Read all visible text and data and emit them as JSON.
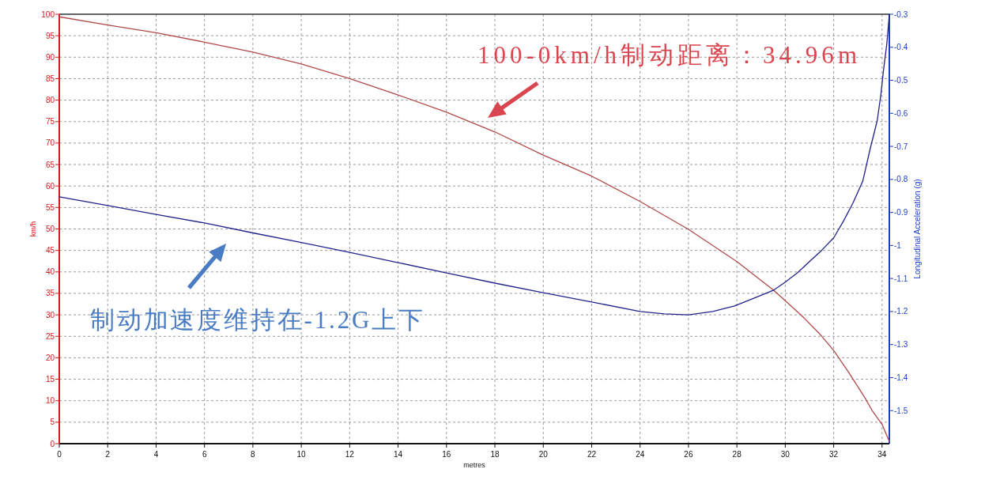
{
  "chart_data": {
    "type": "line",
    "xlabel": "metres",
    "ylabel": "km/h",
    "y2label": "Longitudinal Acceleration (g)",
    "xlim": [
      0,
      34.3
    ],
    "xticks": [
      0,
      2,
      4,
      6,
      8,
      10,
      12,
      14,
      16,
      18,
      20,
      22,
      24,
      26,
      28,
      30,
      32,
      34
    ],
    "ylim": [
      0,
      100
    ],
    "yticks": [
      0,
      5,
      10,
      15,
      20,
      25,
      30,
      35,
      40,
      45,
      50,
      55,
      60,
      65,
      70,
      75,
      80,
      85,
      90,
      95,
      100
    ],
    "y2lim": [
      -1.6,
      -0.3
    ],
    "y2ticks": [
      -0.3,
      -0.4,
      -0.5,
      -0.6,
      -0.7,
      -0.8,
      -0.9,
      -1,
      -1.1,
      -1.2,
      -1.3,
      -1.4,
      -1.5
    ],
    "grid": true,
    "series": [
      {
        "color": "#b04a48",
        "x": [
          0,
          2,
          4,
          6,
          8,
          10,
          12,
          14,
          16,
          18,
          20,
          22,
          24,
          26,
          28,
          29.5,
          30,
          30.7,
          31.4,
          32,
          32.6,
          33.3,
          33.6,
          34,
          34.3
        ],
        "values": [
          99.4,
          97.5,
          95.7,
          93.5,
          91.2,
          88.4,
          85.0,
          81.2,
          77.2,
          72.6,
          67.2,
          62.3,
          56.4,
          49.9,
          42.4,
          35.8,
          33.3,
          29.7,
          25.7,
          21.7,
          16.8,
          10.6,
          7.6,
          4.5,
          0.5
        ]
      },
      {
        "color": "#23238c",
        "axis": "y2",
        "x": [
          0,
          2,
          4,
          6,
          8,
          10,
          12,
          14,
          16,
          18,
          20,
          22,
          24,
          25,
          26,
          27,
          27.9,
          28.6,
          29.5,
          30,
          30.5,
          31,
          31.5,
          32,
          32.4,
          32.8,
          33.2,
          33.5,
          33.8,
          33.95,
          34.05,
          34.2,
          34.3
        ],
        "values": [
          -0.853,
          -0.879,
          -0.906,
          -0.932,
          -0.962,
          -0.991,
          -1.021,
          -1.052,
          -1.083,
          -1.114,
          -1.143,
          -1.171,
          -1.2,
          -1.207,
          -1.21,
          -1.2,
          -1.183,
          -1.163,
          -1.136,
          -1.111,
          -1.083,
          -1.049,
          -1.015,
          -0.977,
          -0.927,
          -0.871,
          -0.806,
          -0.71,
          -0.622,
          -0.544,
          -0.475,
          -0.387,
          -0.3
        ]
      }
    ],
    "annotations": [
      "100-0km/h制动距离：34.96m",
      "制动加速度维持在-1.2G上下"
    ]
  }
}
